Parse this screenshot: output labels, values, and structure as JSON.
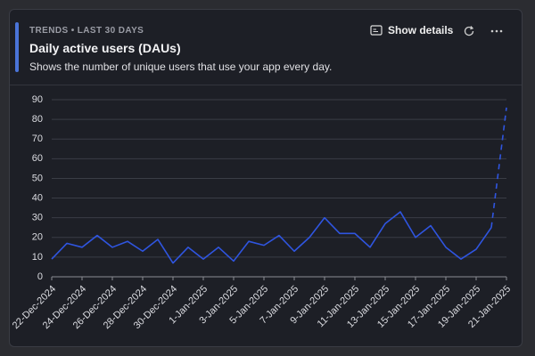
{
  "header": {
    "eyebrow": "TRENDS • LAST 30 DAYS",
    "title": "Daily active users (DAUs)",
    "description": "Shows the number of unique users that use your app every day.",
    "button": "Show details"
  },
  "chart_data": {
    "type": "line",
    "categories": [
      "22-Dec-2024",
      null,
      "24-Dec-2024",
      null,
      "26-Dec-2024",
      null,
      "28-Dec-2024",
      null,
      "30-Dec-2024",
      null,
      "1-Jan-2025",
      null,
      "3-Jan-2025",
      null,
      "5-Jan-2025",
      null,
      "7-Jan-2025",
      null,
      "9-Jan-2025",
      null,
      "11-Jan-2025",
      null,
      "13-Jan-2025",
      null,
      "15-Jan-2025",
      null,
      "17-Jan-2025",
      null,
      "19-Jan-2025",
      null,
      "21-Jan-2025"
    ],
    "values": [
      9,
      17,
      15,
      21,
      15,
      18,
      13,
      19,
      7,
      15,
      9,
      15,
      8,
      18,
      16,
      21,
      13,
      20,
      30,
      22,
      22,
      15,
      27,
      33,
      20,
      26,
      15,
      9,
      14,
      25,
      86
    ],
    "color": "#2f55e0",
    "ylim": [
      0,
      90
    ],
    "yticks": [
      0,
      10,
      20,
      30,
      40,
      50,
      60,
      70,
      80,
      90
    ],
    "grid": true
  }
}
